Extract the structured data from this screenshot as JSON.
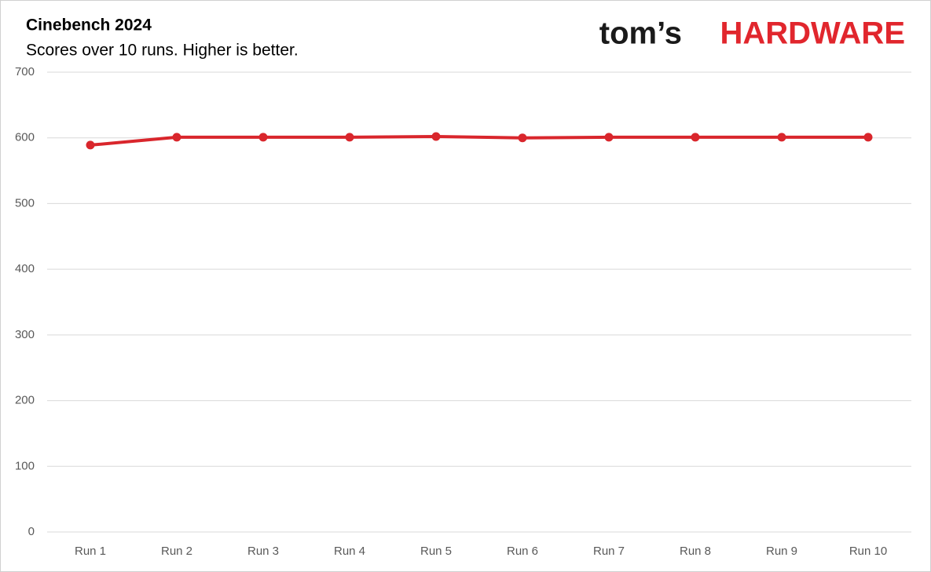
{
  "chart_data": {
    "type": "line",
    "title": "Cinebench 2024",
    "subtitle": "Scores over 10 runs. Higher is better.",
    "logo": [
      "tom’s",
      "HARDWARE"
    ],
    "categories": [
      "Run 1",
      "Run 2",
      "Run 3",
      "Run 4",
      "Run 5",
      "Run 6",
      "Run 7",
      "Run 8",
      "Run 9",
      "Run 10"
    ],
    "values": [
      589,
      601,
      601,
      601,
      602,
      600,
      601,
      601,
      601,
      601
    ],
    "color": "#d9262c",
    "ylim": [
      0,
      700
    ],
    "yticks": [
      0,
      100,
      200,
      300,
      400,
      500,
      600,
      700
    ],
    "grid": true
  }
}
